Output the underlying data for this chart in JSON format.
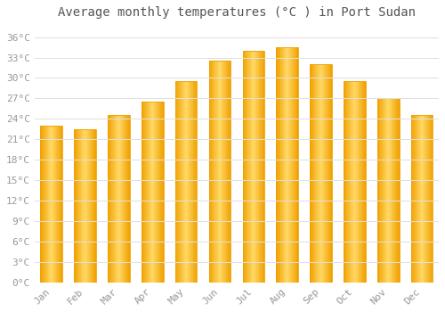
{
  "title": "Average monthly temperatures (°C ) in Port Sudan",
  "months": [
    "Jan",
    "Feb",
    "Mar",
    "Apr",
    "May",
    "Jun",
    "Jul",
    "Aug",
    "Sep",
    "Oct",
    "Nov",
    "Dec"
  ],
  "values": [
    23.0,
    22.5,
    24.5,
    26.5,
    29.5,
    32.5,
    34.0,
    34.5,
    32.0,
    29.5,
    27.0,
    24.5
  ],
  "bar_color_center": "#FFD966",
  "bar_color_edge": "#F0A000",
  "background_color": "#FFFFFF",
  "grid_color": "#E0E0E0",
  "title_color": "#555555",
  "tick_label_color": "#999999",
  "ylim": [
    0,
    38
  ],
  "yticks": [
    0,
    3,
    6,
    9,
    12,
    15,
    18,
    21,
    24,
    27,
    30,
    33,
    36
  ],
  "ytick_labels": [
    "0°C",
    "3°C",
    "6°C",
    "9°C",
    "12°C",
    "15°C",
    "18°C",
    "21°C",
    "24°C",
    "27°C",
    "30°C",
    "33°C",
    "36°C"
  ],
  "title_fontsize": 10,
  "tick_fontsize": 8,
  "font_family": "monospace",
  "bar_width": 0.65
}
